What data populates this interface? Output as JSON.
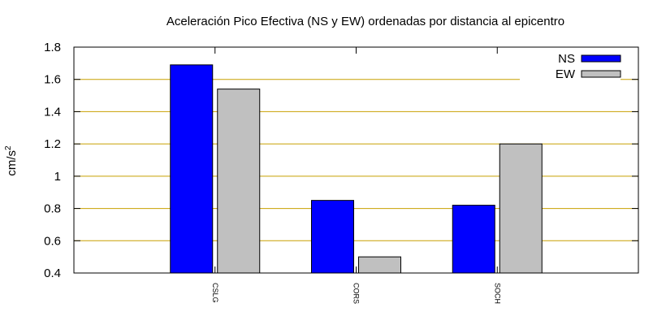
{
  "chart_data": {
    "type": "bar",
    "title": "Aceleración Pico Efectiva (NS y EW) ordenadas por distancia al epicentro",
    "xlabel": "",
    "ylabel_base": "cm/s",
    "ylabel_exponent": "2",
    "ylim": [
      0.4,
      1.8
    ],
    "yticks": [
      0.4,
      0.6,
      0.8,
      1,
      1.2,
      1.4,
      1.6,
      1.8
    ],
    "ytick_labels": [
      "0.4",
      "0.6",
      "0.8",
      "1",
      "1.2",
      "1.4",
      "1.6",
      "1.8"
    ],
    "grid": true,
    "legend_position": "top-right",
    "categories": [
      "CSLG",
      "CORS",
      "SOCH"
    ],
    "series": [
      {
        "name": "NS",
        "values": [
          1.69,
          0.85,
          0.82
        ],
        "color": "#0000ff"
      },
      {
        "name": "EW",
        "values": [
          1.54,
          0.5,
          1.2
        ],
        "color": "#c0c0c0"
      }
    ],
    "grid_color": "#c8a000"
  }
}
